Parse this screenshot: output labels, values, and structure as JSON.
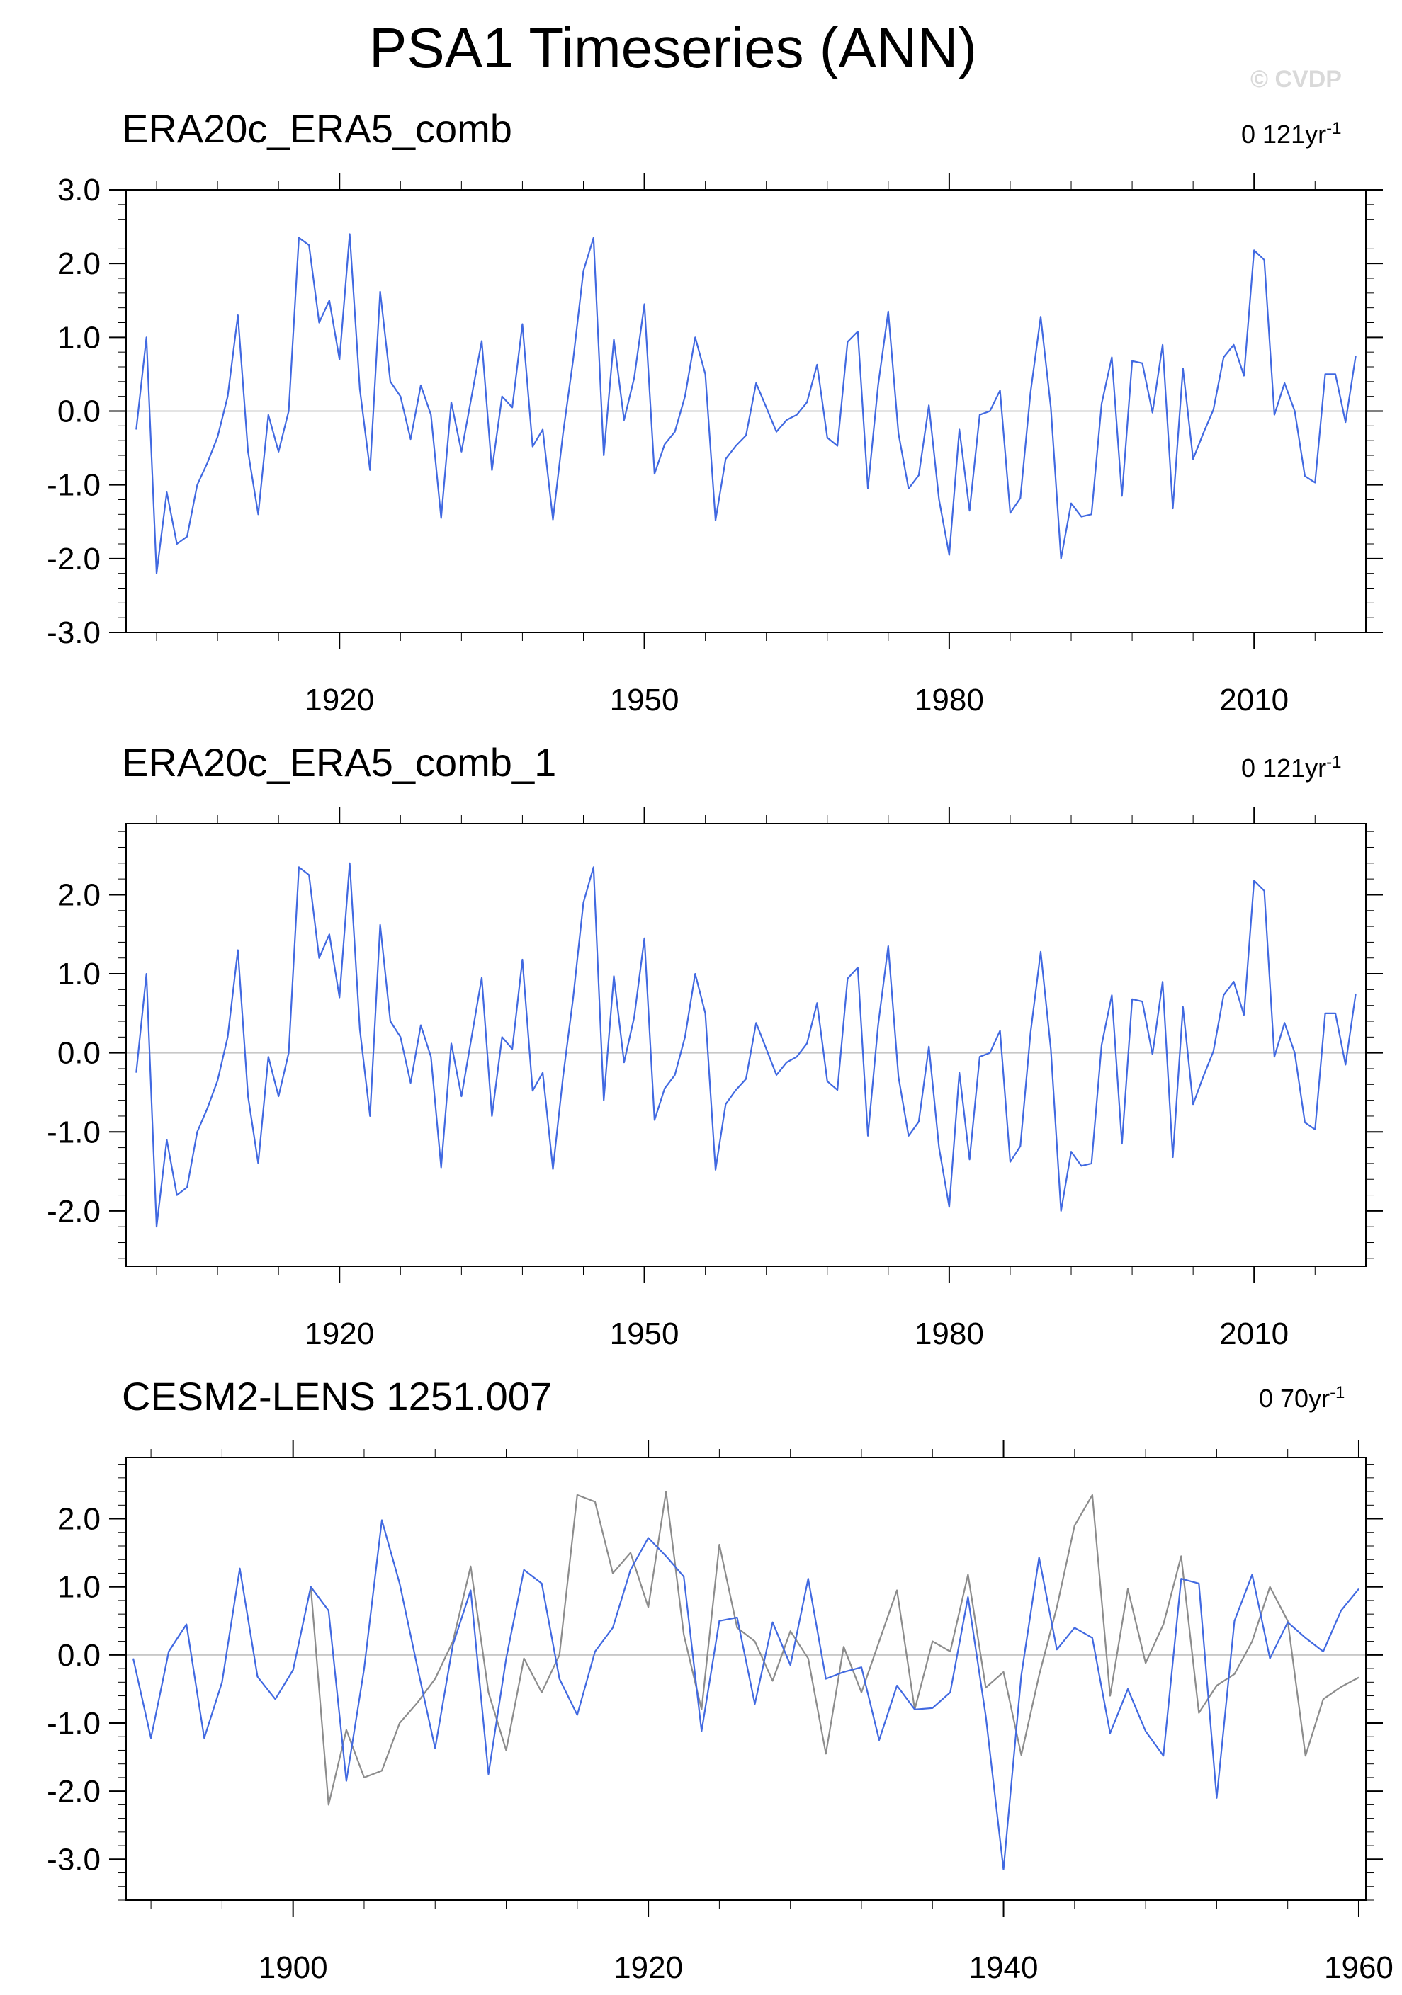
{
  "title": "PSA1 Timeseries (ANN)",
  "watermark": "© CVDP",
  "colors": {
    "series": "#4169e1",
    "obs_overlay": "#8c8c8c",
    "zero_line": "#c8c8c8"
  },
  "panels": [
    {
      "label": "ERA20c_ERA5_comb",
      "trend_value": "0 121yr",
      "trend_exp": "-1"
    },
    {
      "label": "ERA20c_ERA5_comb_1",
      "trend_value": "0 121yr",
      "trend_exp": "-1"
    },
    {
      "label": "CESM2-LENS 1251.007",
      "trend_value": "0 70yr",
      "trend_exp": "-1"
    }
  ],
  "chart_data": [
    {
      "type": "line",
      "title": "ERA20c_ERA5_comb",
      "x_start": 1900,
      "x_end": 2020,
      "xlim": [
        1899,
        2021
      ],
      "ylim": [
        -3,
        3
      ],
      "xticks": [
        1920,
        1950,
        1980,
        2010
      ],
      "yticks": [
        -3,
        -2,
        -1,
        0,
        1,
        2,
        3
      ],
      "ytick_labels": [
        "-3.0",
        "-2.0",
        "-1.0",
        "0.0",
        "1.0",
        "2.0",
        "3.0"
      ],
      "series": [
        {
          "values": [
            -0.25,
            1.0,
            -2.2,
            -1.1,
            -1.8,
            -1.7,
            -1.0,
            -0.7,
            -0.35,
            0.2,
            1.3,
            -0.55,
            -1.4,
            -0.05,
            -0.55,
            0.0,
            2.35,
            2.25,
            1.2,
            1.5,
            0.7,
            2.4,
            0.3,
            -0.8,
            1.62,
            0.4,
            0.2,
            -0.38,
            0.35,
            -0.05,
            -1.45,
            0.12,
            -0.55,
            0.2,
            0.95,
            -0.8,
            0.2,
            0.05,
            1.18,
            -0.48,
            -0.25,
            -1.47,
            -0.3,
            0.7,
            1.9,
            2.35,
            -0.6,
            0.97,
            -0.12,
            0.45,
            1.45,
            -0.85,
            -0.45,
            -0.28,
            0.2,
            1.0,
            0.5,
            -1.48,
            -0.65,
            -0.47,
            -0.33,
            0.38,
            0.05,
            -0.28,
            -0.12,
            -0.05,
            0.12,
            0.63,
            -0.36,
            -0.47,
            0.94,
            1.08,
            -1.05,
            0.35,
            1.35,
            -0.3,
            -1.05,
            -0.87,
            0.08,
            -1.2,
            -1.95,
            -0.25,
            -1.35,
            -0.05,
            0.0,
            0.28,
            -1.38,
            -1.18,
            0.25,
            1.28,
            0.05,
            -2.0,
            -1.25,
            -1.43,
            -1.4,
            0.1,
            0.73,
            -1.15,
            0.68,
            0.65,
            -0.02,
            0.9,
            -1.32,
            0.58,
            -0.65,
            -0.3,
            0.02,
            0.73,
            0.9,
            0.48,
            2.18,
            2.05,
            -0.05,
            0.38,
            0.0,
            -0.88,
            -0.97,
            0.5,
            0.5,
            -0.15,
            0.75
          ]
        }
      ]
    },
    {
      "type": "line",
      "title": "ERA20c_ERA5_comb_1",
      "x_start": 1900,
      "x_end": 2020,
      "xlim": [
        1899,
        2021
      ],
      "ylim": [
        -2.7,
        2.9
      ],
      "xticks": [
        1920,
        1950,
        1980,
        2010
      ],
      "yticks": [
        -2,
        -1,
        0,
        1,
        2
      ],
      "ytick_labels": [
        "-2.0",
        "-1.0",
        "0.0",
        "1.0",
        "2.0"
      ],
      "series": [
        {
          "values": [
            -0.25,
            1.0,
            -2.2,
            -1.1,
            -1.8,
            -1.7,
            -1.0,
            -0.7,
            -0.35,
            0.2,
            1.3,
            -0.55,
            -1.4,
            -0.05,
            -0.55,
            0.0,
            2.35,
            2.25,
            1.2,
            1.5,
            0.7,
            2.4,
            0.3,
            -0.8,
            1.62,
            0.4,
            0.2,
            -0.38,
            0.35,
            -0.05,
            -1.45,
            0.12,
            -0.55,
            0.2,
            0.95,
            -0.8,
            0.2,
            0.05,
            1.18,
            -0.48,
            -0.25,
            -1.47,
            -0.3,
            0.7,
            1.9,
            2.35,
            -0.6,
            0.97,
            -0.12,
            0.45,
            1.45,
            -0.85,
            -0.45,
            -0.28,
            0.2,
            1.0,
            0.5,
            -1.48,
            -0.65,
            -0.47,
            -0.33,
            0.38,
            0.05,
            -0.28,
            -0.12,
            -0.05,
            0.12,
            0.63,
            -0.36,
            -0.47,
            0.94,
            1.08,
            -1.05,
            0.35,
            1.35,
            -0.3,
            -1.05,
            -0.87,
            0.08,
            -1.2,
            -1.95,
            -0.25,
            -1.35,
            -0.05,
            0.0,
            0.28,
            -1.38,
            -1.18,
            0.25,
            1.28,
            0.05,
            -2.0,
            -1.25,
            -1.43,
            -1.4,
            0.1,
            0.73,
            -1.15,
            0.68,
            0.65,
            -0.02,
            0.9,
            -1.32,
            0.58,
            -0.65,
            -0.3,
            0.02,
            0.73,
            0.9,
            0.48,
            2.18,
            2.05,
            -0.05,
            0.38,
            0.0,
            -0.88,
            -0.97,
            0.5,
            0.5,
            -0.15,
            0.75
          ]
        }
      ]
    },
    {
      "type": "line",
      "title": "CESM2-LENS 1251.007",
      "x_start": 1891,
      "x_end": 1960,
      "xlim": [
        1890.6,
        1960.4
      ],
      "ylim": [
        -3.6,
        2.9
      ],
      "xticks": [
        1900,
        1920,
        1940,
        1960
      ],
      "yticks": [
        -3,
        -2,
        -1,
        0,
        1,
        2
      ],
      "ytick_labels": [
        "-3.0",
        "-2.0",
        "-1.0",
        "0.0",
        "1.0",
        "2.0"
      ],
      "series": [
        {
          "values": [
            -0.05,
            -1.22,
            0.05,
            0.45,
            -1.22,
            -0.4,
            1.27,
            -0.32,
            -0.65,
            -0.22,
            1.0,
            0.65,
            -1.85,
            -0.2,
            1.98,
            1.05,
            -0.18,
            -1.37,
            0.15,
            0.95,
            -1.75,
            -0.05,
            1.25,
            1.05,
            -0.35,
            -0.88,
            0.05,
            0.4,
            1.25,
            1.72,
            1.45,
            1.15,
            -1.12,
            0.5,
            0.55,
            -0.72,
            0.48,
            -0.15,
            1.12,
            -0.35,
            -0.25,
            -0.18,
            -1.25,
            -0.45,
            -0.8,
            -0.78,
            -0.55,
            0.85,
            -0.9,
            -3.15,
            -0.3,
            1.43,
            0.08,
            0.4,
            0.25,
            -1.15,
            -0.5,
            -1.12,
            -1.48,
            1.12,
            1.05,
            -2.1,
            0.5,
            1.18,
            -0.05,
            0.48,
            0.25,
            0.05,
            0.65,
            0.97
          ]
        },
        {
          "start": 1901,
          "values": [
            1.0,
            -2.2,
            -1.1,
            -1.8,
            -1.7,
            -1.0,
            -0.7,
            -0.35,
            0.2,
            1.3,
            -0.55,
            -1.4,
            -0.05,
            -0.55,
            0.0,
            2.35,
            2.25,
            1.2,
            1.5,
            0.7,
            2.4,
            0.3,
            -0.8,
            1.62,
            0.4,
            0.2,
            -0.38,
            0.35,
            -0.05,
            -1.45,
            0.12,
            -0.55,
            0.2,
            0.95,
            -0.8,
            0.2,
            0.05,
            1.18,
            -0.48,
            -0.25,
            -1.47,
            -0.3,
            0.7,
            1.9,
            2.35,
            -0.6,
            0.97,
            -0.12,
            0.45,
            1.45,
            -0.85,
            -0.45,
            -0.28,
            0.2,
            1.0,
            0.5,
            -1.48,
            -0.65,
            -0.47,
            -0.33
          ]
        }
      ]
    }
  ]
}
